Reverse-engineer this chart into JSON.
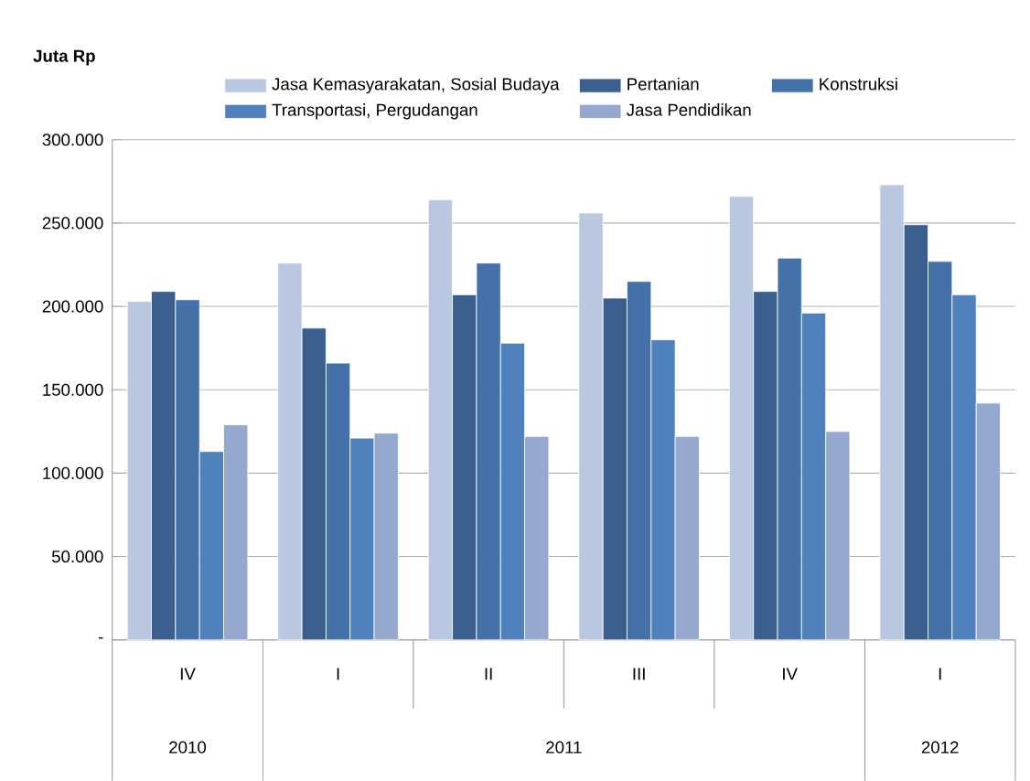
{
  "chart_data": {
    "type": "bar",
    "ylabel": "Juta Rp",
    "categories": [
      "IV",
      "I",
      "II",
      "III",
      "IV",
      "I"
    ],
    "series": [
      {
        "name": "Jasa Kemasyarakatan,  Sosial Budaya",
        "color": "#b9c7e0",
        "values": [
          203000,
          226000,
          264000,
          256000,
          266000,
          273000
        ]
      },
      {
        "name": "Pertanian",
        "color": "#3a5f8f",
        "values": [
          209000,
          187000,
          207000,
          205000,
          209000,
          249000
        ]
      },
      {
        "name": "Konstruksi",
        "color": "#4472a8",
        "values": [
          204000,
          166000,
          226000,
          215000,
          229000,
          227000
        ]
      },
      {
        "name": "Transportasi, Pergudangan",
        "color": "#4f81bd",
        "values": [
          113000,
          121000,
          178000,
          180000,
          196000,
          207000
        ]
      },
      {
        "name": "Jasa Pendidikan",
        "color": "#95a9cf",
        "values": [
          129000,
          124000,
          122000,
          122000,
          125000,
          142000
        ]
      }
    ],
    "ylim": [
      0,
      300000
    ],
    "yticks": [
      {
        "value": 0,
        "label": "-"
      },
      {
        "value": 50000,
        "label": "50.000"
      },
      {
        "value": 100000,
        "label": "100.000"
      },
      {
        "value": 150000,
        "label": "150.000"
      },
      {
        "value": 200000,
        "label": "200.000"
      },
      {
        "value": 250000,
        "label": "250.000"
      },
      {
        "value": 300000,
        "label": "300.000"
      }
    ],
    "grid": "y",
    "legend": "top",
    "annotations": [
      "2010",
      "2011",
      "2012"
    ]
  }
}
